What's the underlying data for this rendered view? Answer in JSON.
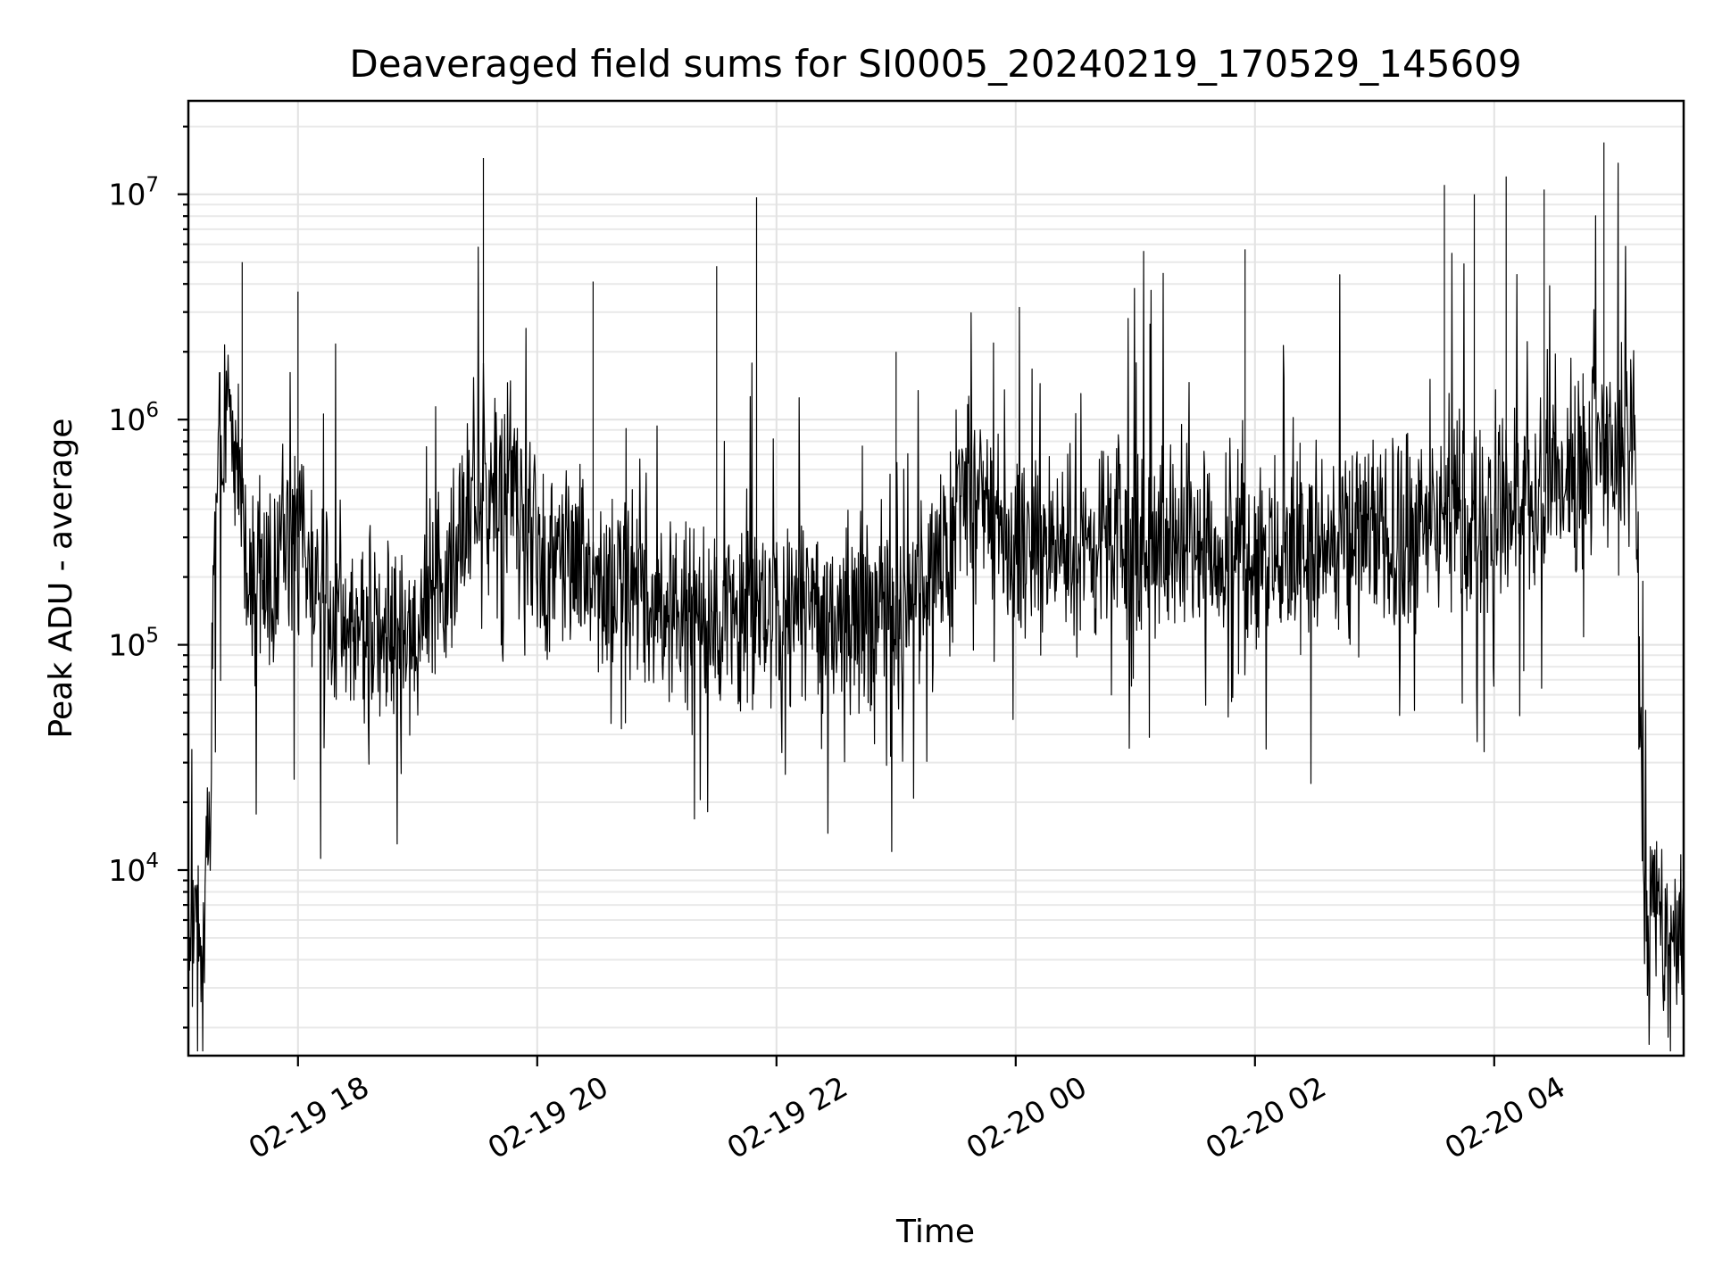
{
  "chart_data": {
    "type": "line",
    "title": "Deaveraged field sums for SI0005_20240219_170529_145609",
    "xlabel": "Time",
    "ylabel": "Peak ADU - average",
    "y_scale": "log",
    "ylim": [
      1500,
      26000000
    ],
    "xlim": [
      "2024-02-19 17:05",
      "2024-02-20 05:35"
    ],
    "x_ticks": [
      "02-19 18",
      "02-19 20",
      "02-19 22",
      "02-20 00",
      "02-20 02",
      "02-20 04"
    ],
    "x_tick_times": [
      "2024-02-19 18:00",
      "2024-02-19 20:00",
      "2024-02-19 22:00",
      "2024-02-20 00:00",
      "2024-02-20 02:00",
      "2024-02-20 04:00"
    ],
    "y_ticks": [
      {
        "base": "10",
        "exp": "4",
        "value": 10000
      },
      {
        "base": "10",
        "exp": "5",
        "value": 100000
      },
      {
        "base": "10",
        "exp": "6",
        "value": 1000000
      },
      {
        "base": "10",
        "exp": "7",
        "value": 10000000
      }
    ],
    "grid": true,
    "line_color": "#000000",
    "series": [
      {
        "x": [
          "2024-02-19 17:05",
          "2024-02-19 17:10",
          "2024-02-19 17:15",
          "2024-02-19 17:18",
          "2024-02-19 17:20",
          "2024-02-19 17:25",
          "2024-02-19 17:30",
          "2024-02-19 17:35",
          "2024-02-19 17:40",
          "2024-02-19 17:50",
          "2024-02-19 18:00",
          "2024-02-19 18:15",
          "2024-02-19 18:30",
          "2024-02-19 18:45",
          "2024-02-19 19:00",
          "2024-02-19 19:15",
          "2024-02-19 19:30",
          "2024-02-19 19:45",
          "2024-02-19 20:00",
          "2024-02-19 20:30",
          "2024-02-19 21:00",
          "2024-02-19 21:30",
          "2024-02-19 22:00",
          "2024-02-19 22:30",
          "2024-02-19 23:00",
          "2024-02-19 23:20",
          "2024-02-19 23:30",
          "2024-02-19 23:45",
          "2024-02-20 00:00",
          "2024-02-20 00:30",
          "2024-02-20 01:00",
          "2024-02-20 01:30",
          "2024-02-20 02:00",
          "2024-02-20 02:30",
          "2024-02-20 03:00",
          "2024-02-20 03:30",
          "2024-02-20 04:00",
          "2024-02-20 04:30",
          "2024-02-20 05:00",
          "2024-02-20 05:10",
          "2024-02-20 05:13",
          "2024-02-20 05:15",
          "2024-02-20 05:25",
          "2024-02-20 05:35"
        ],
        "values": [
          6000,
          5000,
          8000,
          150000,
          800000,
          1000000,
          700000,
          200000,
          180000,
          180000,
          300000,
          150000,
          120000,
          110000,
          120000,
          250000,
          400000,
          600000,
          300000,
          200000,
          150000,
          140000,
          130000,
          140000,
          150000,
          180000,
          450000,
          450000,
          280000,
          250000,
          300000,
          300000,
          260000,
          280000,
          300000,
          320000,
          380000,
          500000,
          700000,
          900000,
          100000,
          8000,
          6000,
          4000
        ]
      }
    ],
    "spikes": [
      {
        "x": "2024-02-19 17:32",
        "value": 5000000
      },
      {
        "x": "2024-02-19 18:00",
        "value": 3700000
      },
      {
        "x": "2024-02-19 19:33",
        "value": 14500000
      },
      {
        "x": "2024-02-19 20:28",
        "value": 4100000
      },
      {
        "x": "2024-02-19 21:30",
        "value": 4800000
      },
      {
        "x": "2024-02-19 21:50",
        "value": 9700000
      },
      {
        "x": "2024-02-19 23:00",
        "value": 2000000
      },
      {
        "x": "2024-02-20 01:55",
        "value": 5700000
      },
      {
        "x": "2024-02-20 03:35",
        "value": 11000000
      },
      {
        "x": "2024-02-20 03:50",
        "value": 10000000
      },
      {
        "x": "2024-02-20 04:06",
        "value": 12000000
      },
      {
        "x": "2024-02-20 04:25",
        "value": 10500000
      },
      {
        "x": "2024-02-20 04:55",
        "value": 17000000
      }
    ]
  }
}
